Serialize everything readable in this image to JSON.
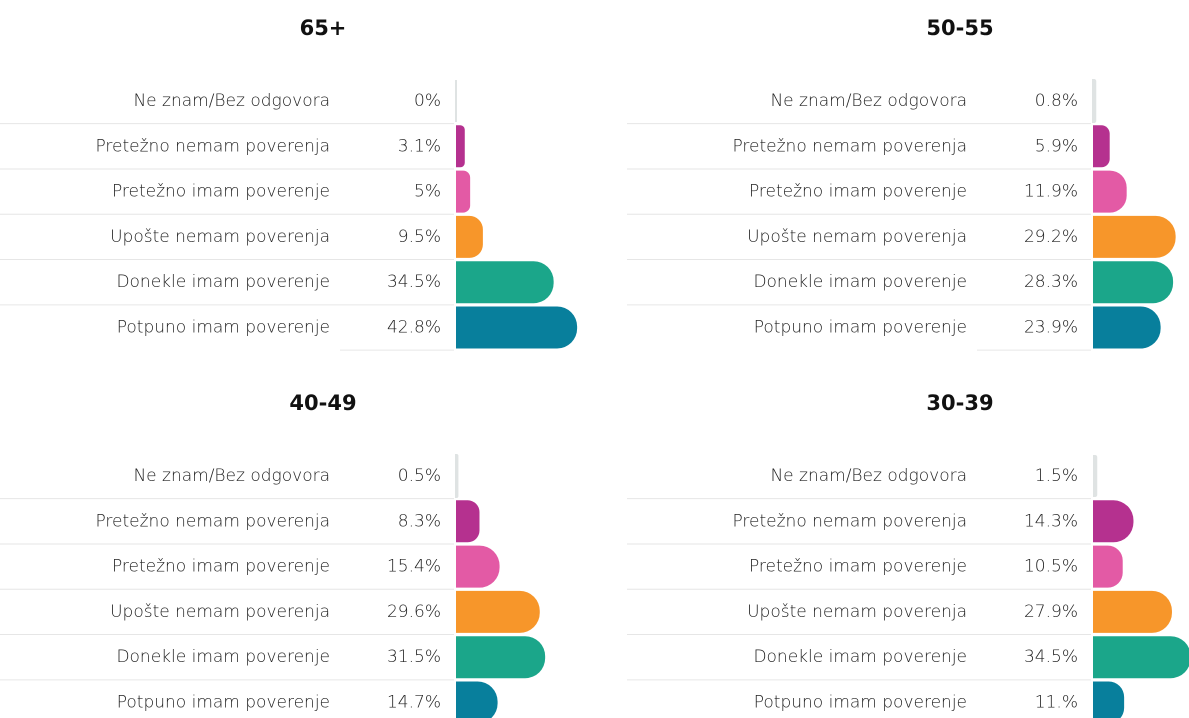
{
  "chart_data": [
    {
      "type": "bar",
      "title": "65+",
      "categories": [
        "Ne znam/Bez odgovora",
        "Pretežno nemam poverenja",
        "Pretežno imam poverenje",
        "Upošte nemam poverenja",
        "Donekle imam poverenje",
        "Potpuno imam poverenje"
      ],
      "values": [
        0,
        3.1,
        5,
        9.5,
        34.5,
        42.8
      ],
      "value_labels": [
        "0%",
        "3.1%",
        "5%",
        "9.5%",
        "34.5%",
        "42.8%"
      ],
      "colors": [
        "#dfe3e3",
        "#b5318f",
        "#e35aa5",
        "#f7962a",
        "#1ba68a",
        "#087f9c"
      ]
    },
    {
      "type": "bar",
      "title": "50-55",
      "categories": [
        "Ne znam/Bez odgovora",
        "Pretežno nemam poverenja",
        "Pretežno imam poverenje",
        "Upošte nemam poverenja",
        "Donekle imam poverenje",
        "Potpuno imam poverenje"
      ],
      "values": [
        0.8,
        5.9,
        11.9,
        29.2,
        28.3,
        23.9
      ],
      "value_labels": [
        "0.8%",
        "5.9%",
        "11.9%",
        "29.2%",
        "28.3%",
        "23.9%"
      ],
      "colors": [
        "#dfe3e3",
        "#b5318f",
        "#e35aa5",
        "#f7962a",
        "#1ba68a",
        "#087f9c"
      ]
    },
    {
      "type": "bar",
      "title": "40-49",
      "categories": [
        "Ne znam/Bez odgovora",
        "Pretežno nemam poverenja",
        "Pretežno imam poverenje",
        "Upošte nemam poverenja",
        "Donekle imam poverenje",
        "Potpuno imam poverenje"
      ],
      "values": [
        0.5,
        8.3,
        15.4,
        29.6,
        31.5,
        14.7
      ],
      "value_labels": [
        "0.5%",
        "8.3%",
        "15.4%",
        "29.6%",
        "31.5%",
        "14.7%"
      ],
      "colors": [
        "#dfe3e3",
        "#b5318f",
        "#e35aa5",
        "#f7962a",
        "#1ba68a",
        "#087f9c"
      ]
    },
    {
      "type": "bar",
      "title": "30-39",
      "categories": [
        "Ne znam/Bez odgovora",
        "Pretežno nemam poverenja",
        "Pretežno imam poverenje",
        "Upošte nemam poverenja",
        "Donekle imam poverenje",
        "Potpuno imam poverenje"
      ],
      "values": [
        1.5,
        14.3,
        10.5,
        27.9,
        34.5,
        11
      ],
      "value_labels": [
        "1.5%",
        "14.3%",
        "10.5%",
        "27.9%",
        "34.5%",
        "11.%"
      ],
      "colors": [
        "#dfe3e3",
        "#b5318f",
        "#e35aa5",
        "#f7962a",
        "#1ba68a",
        "#087f9c"
      ]
    }
  ]
}
